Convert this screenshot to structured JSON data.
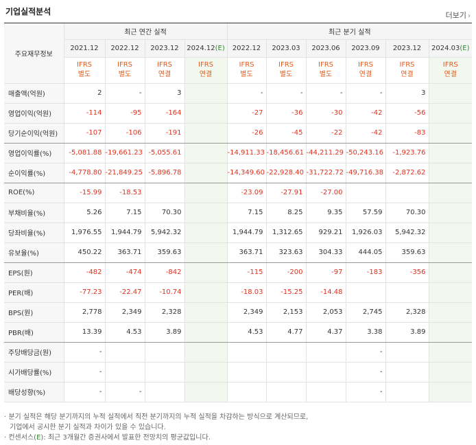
{
  "header": {
    "title": "기업실적분석",
    "more_label": "더보기",
    "more_arrow": "›"
  },
  "table": {
    "row_header_label": "주요재무정보",
    "groups": [
      "최근 연간 실적",
      "최근 분기 실적"
    ],
    "periods": [
      {
        "label": "2021.12",
        "est": ""
      },
      {
        "label": "2022.12",
        "est": ""
      },
      {
        "label": "2023.12",
        "est": ""
      },
      {
        "label": "2024.12",
        "est": "(E)"
      },
      {
        "label": "2022.12",
        "est": ""
      },
      {
        "label": "2023.03",
        "est": ""
      },
      {
        "label": "2023.06",
        "est": ""
      },
      {
        "label": "2023.09",
        "est": ""
      },
      {
        "label": "2023.12",
        "est": ""
      },
      {
        "label": "2024.03",
        "est": "(E)"
      }
    ],
    "ifrs": [
      {
        "top": "IFRS",
        "bottom": "별도"
      },
      {
        "top": "IFRS",
        "bottom": "별도"
      },
      {
        "top": "IFRS",
        "bottom": "연결"
      },
      {
        "top": "IFRS",
        "bottom": "연결"
      },
      {
        "top": "IFRS",
        "bottom": "별도"
      },
      {
        "top": "IFRS",
        "bottom": "별도"
      },
      {
        "top": "IFRS",
        "bottom": "별도"
      },
      {
        "top": "IFRS",
        "bottom": "연결"
      },
      {
        "top": "IFRS",
        "bottom": "연결"
      },
      {
        "top": "IFRS",
        "bottom": "연결"
      }
    ],
    "rows": [
      {
        "label": "매출액(억원)",
        "values": [
          "2",
          "-",
          "3",
          "",
          "-",
          "-",
          "-",
          "-",
          "3",
          ""
        ]
      },
      {
        "label": "영업이익(억원)",
        "values": [
          "-114",
          "-95",
          "-164",
          "",
          "-27",
          "-36",
          "-30",
          "-42",
          "-56",
          ""
        ]
      },
      {
        "label": "당기순이익(억원)",
        "values": [
          "-107",
          "-106",
          "-191",
          "",
          "-26",
          "-45",
          "-22",
          "-42",
          "-83",
          ""
        ]
      },
      {
        "label": "영업이익률(%)",
        "values": [
          "-5,081.88",
          "-19,661.23",
          "-5,055.61",
          "",
          "-14,911.33",
          "-18,456.61",
          "-44,211.29",
          "-50,243.16",
          "-1,923.76",
          ""
        ]
      },
      {
        "label": "순이익률(%)",
        "values": [
          "-4,778.80",
          "-21,849.25",
          "-5,896.78",
          "",
          "-14,349.60",
          "-22,928.40",
          "-31,722.72",
          "-49,716.38",
          "-2,872.62",
          ""
        ]
      },
      {
        "label": "ROE(%)",
        "values": [
          "-15.99",
          "-18.53",
          "",
          "",
          "-23.09",
          "-27.91",
          "-27.00",
          "",
          "",
          ""
        ]
      },
      {
        "label": "부채비율(%)",
        "values": [
          "5.26",
          "7.15",
          "70.30",
          "",
          "7.15",
          "8.25",
          "9.35",
          "57.59",
          "70.30",
          ""
        ]
      },
      {
        "label": "당좌비율(%)",
        "values": [
          "1,976.55",
          "1,944.79",
          "5,942.32",
          "",
          "1,944.79",
          "1,312.65",
          "929.21",
          "1,926.03",
          "5,942.32",
          ""
        ]
      },
      {
        "label": "유보율(%)",
        "values": [
          "450.22",
          "363.71",
          "359.63",
          "",
          "363.71",
          "323.63",
          "304.33",
          "444.05",
          "359.63",
          ""
        ]
      },
      {
        "label": "EPS(원)",
        "values": [
          "-482",
          "-474",
          "-842",
          "",
          "-115",
          "-200",
          "-97",
          "-183",
          "-356",
          ""
        ]
      },
      {
        "label": "PER(배)",
        "values": [
          "-77.23",
          "-22.47",
          "-10.74",
          "",
          "-18.03",
          "-15.25",
          "-14.48",
          "",
          "",
          ""
        ]
      },
      {
        "label": "BPS(원)",
        "values": [
          "2,778",
          "2,349",
          "2,328",
          "",
          "2,349",
          "2,153",
          "2,053",
          "2,745",
          "2,328",
          ""
        ]
      },
      {
        "label": "PBR(배)",
        "values": [
          "13.39",
          "4.53",
          "3.89",
          "",
          "4.53",
          "4.77",
          "4.37",
          "3.38",
          "3.89",
          ""
        ]
      },
      {
        "label": "주당배당금(원)",
        "values": [
          "-",
          "",
          "",
          "",
          "",
          "",
          "",
          "-",
          "",
          ""
        ]
      },
      {
        "label": "시가배당률(%)",
        "values": [
          "-",
          "",
          "",
          "",
          "",
          "",
          "",
          "-",
          "",
          ""
        ]
      },
      {
        "label": "배당성향(%)",
        "values": [
          "-",
          "-",
          "",
          "",
          "",
          "",
          "",
          "-",
          "",
          ""
        ]
      }
    ]
  },
  "notes": {
    "line1": "· 분기 실적은 해당 분기까지의 누적 실적에서 직전 분기까지의 누적 실적을 차감하는 방식으로 계산되므로,",
    "line2": "기업에서 공시한 분기 실적과 차이가 있을 수 있습니다.",
    "line3_prefix": "· 컨센서스(",
    "line3_e": "E",
    "line3_suffix": "): 최근 3개월간 증권사에서 발표한 전망치의 평균값입니다."
  }
}
